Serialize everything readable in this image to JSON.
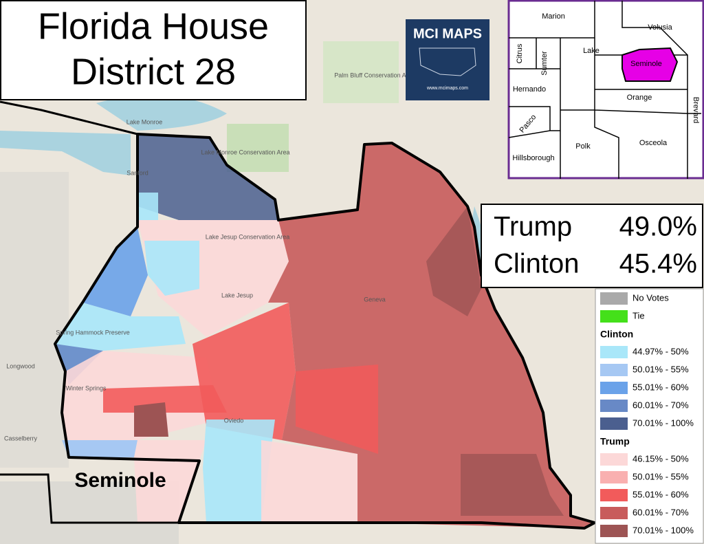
{
  "title": {
    "lines": [
      "Florida House",
      "District 28"
    ]
  },
  "logo": {
    "name": "MCI MAPS",
    "url": "www.mcimaps.com"
  },
  "inset": {
    "counties": [
      "Marion",
      "Volusia",
      "Lake",
      "Citrus",
      "Sumter",
      "Seminole",
      "Hernando",
      "Orange",
      "Brevard",
      "Pasco",
      "Polk",
      "Osceola",
      "Hillsborough"
    ]
  },
  "results": [
    {
      "candidate": "Trump",
      "share": "49.0%"
    },
    {
      "candidate": "Clinton",
      "share": "45.4%"
    }
  ],
  "legend": {
    "items": [
      {
        "label": "No Votes",
        "color": "#a9a9a9"
      },
      {
        "label": "Tie",
        "color": "#44e01a"
      }
    ],
    "groups": [
      {
        "heading": "Clinton",
        "items": [
          {
            "label": "44.97% - 50%",
            "color": "#a9e7f9"
          },
          {
            "label": "50.01% - 55%",
            "color": "#a6c8f3"
          },
          {
            "label": "55.01% - 60%",
            "color": "#6aa2e9"
          },
          {
            "label": "60.01% - 70%",
            "color": "#6889c6"
          },
          {
            "label": "70.01% - 100%",
            "color": "#4b5f8f"
          }
        ]
      },
      {
        "heading": "Trump",
        "items": [
          {
            "label": "46.15% - 50%",
            "color": "#fcd8d8"
          },
          {
            "label": "50.01% - 55%",
            "color": "#f9b0b0"
          },
          {
            "label": "55.01% - 60%",
            "color": "#f25b5b"
          },
          {
            "label": "60.01% - 70%",
            "color": "#c85b5b"
          },
          {
            "label": "70.01% - 100%",
            "color": "#9d5454"
          }
        ]
      }
    ]
  },
  "county_label": "Seminole",
  "map_labels": [
    "Lake Monroe",
    "Sanford",
    "Lake Monroe Conservation Area",
    "Palm Bluff Conservation Area",
    "Lake Jesup Conservation Area",
    "Lake Jesup",
    "Geneva",
    "Winter Springs",
    "Longwood",
    "Casselberry",
    "Oviedo",
    "Spring Hammock Preserve"
  ]
}
